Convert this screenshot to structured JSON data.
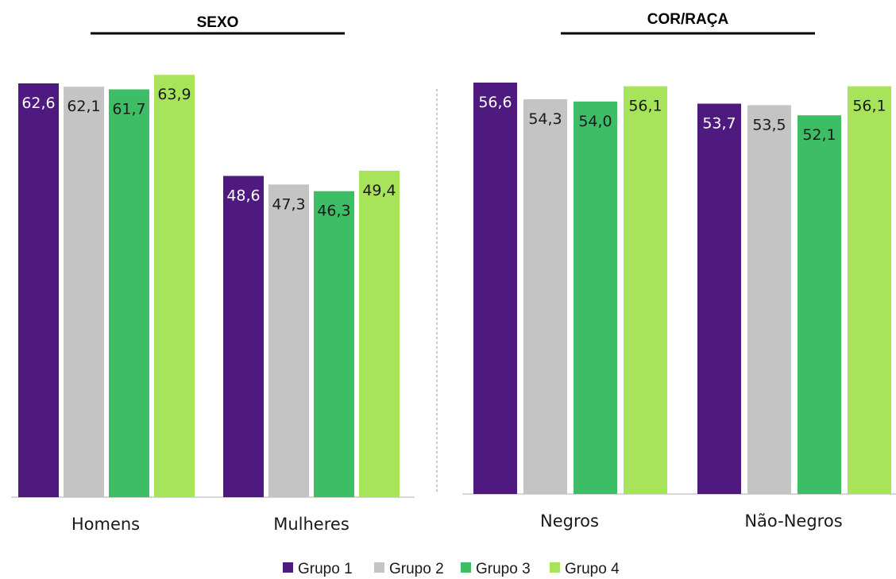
{
  "chart_data": [
    {
      "type": "bar",
      "title": "SEXO",
      "categories": [
        "Homens",
        "Mulheres"
      ],
      "series": [
        {
          "name": "Grupo 1",
          "values": [
            62.6,
            48.6
          ],
          "labels": [
            "62,6",
            "48,6"
          ]
        },
        {
          "name": "Grupo 2",
          "values": [
            62.1,
            47.3
          ],
          "labels": [
            "62,1",
            "47,3"
          ]
        },
        {
          "name": "Grupo 3",
          "values": [
            61.7,
            46.3
          ],
          "labels": [
            "61,7",
            "46,3"
          ]
        },
        {
          "name": "Grupo 4",
          "values": [
            63.9,
            49.4
          ],
          "labels": [
            "63,9",
            "49,4"
          ]
        }
      ],
      "ylim": [
        0,
        64
      ],
      "grid": false,
      "legend": "bottom"
    },
    {
      "type": "bar",
      "title": "COR/RAÇA",
      "categories": [
        "Negros",
        "Não-Negros"
      ],
      "series": [
        {
          "name": "Grupo 1",
          "values": [
            56.6,
            53.7
          ],
          "labels": [
            "56,6",
            "53,7"
          ]
        },
        {
          "name": "Grupo 2",
          "values": [
            54.3,
            53.5
          ],
          "labels": [
            "54,3",
            "53,5"
          ]
        },
        {
          "name": "Grupo 3",
          "values": [
            54.0,
            52.1
          ],
          "labels": [
            "54,0",
            "52,1"
          ]
        },
        {
          "name": "Grupo 4",
          "values": [
            56.1,
            56.1
          ],
          "labels": [
            "56,1",
            "56,1"
          ]
        }
      ],
      "ylim": [
        0,
        57
      ],
      "grid": false,
      "legend": "bottom"
    }
  ],
  "legend": {
    "items": [
      {
        "label": "Grupo 1",
        "color": "#4f1a80"
      },
      {
        "label": "Grupo 2",
        "color": "#c4c4c4"
      },
      {
        "label": "Grupo 3",
        "color": "#3dbd66"
      },
      {
        "label": "Grupo 4",
        "color": "#a8e45a"
      }
    ]
  },
  "label_colors": [
    "#ffffff",
    "#1a1a1a",
    "#1a1a1a",
    "#1a1a1a"
  ]
}
